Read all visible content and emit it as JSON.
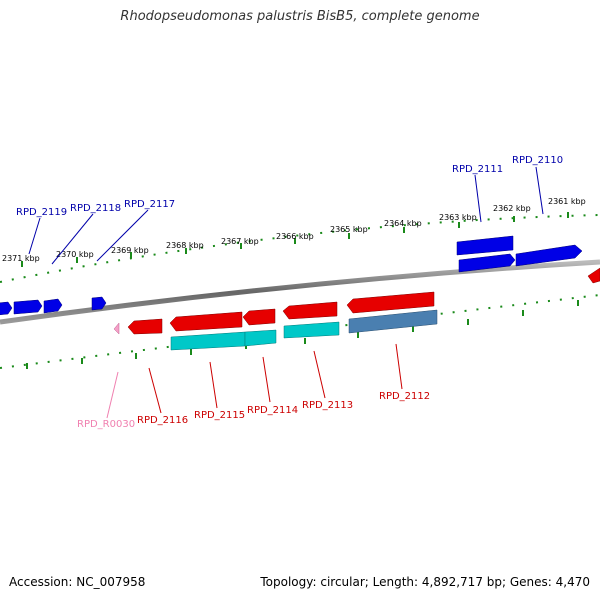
{
  "title": "Rhodopseudomonas palustris BisB5, complete genome",
  "footer": {
    "accession": "Accession: NC_007958",
    "summary": "Topology: circular; Length: 4,892,717 bp; Genes: 4,470"
  },
  "colors": {
    "forward_gene": "#0000e6",
    "reverse_gene": "#e60000",
    "cds_reverse": "#00c8c8",
    "cds_reverse_alt": "#4a7fb0",
    "rna_gene": "#f5a0c8",
    "scale_tick": "#1a8a1a",
    "backbone": "#777777"
  },
  "scale_ticks": [
    "2371 kbp",
    "2370 kbp",
    "2369 kbp",
    "2368 kbp",
    "2367 kbp",
    "2366 kbp",
    "2365 kbp",
    "2364 kbp",
    "2363 kbp",
    "2362 kbp",
    "2361 kbp"
  ],
  "forward_labels": [
    "RPD_2119",
    "RPD_2118",
    "RPD_2117",
    "RPD_2111",
    "RPD_2110"
  ],
  "reverse_labels": [
    "RPD_R0030",
    "RPD_2116",
    "RPD_2115",
    "RPD_2114",
    "RPD_2113",
    "RPD_2112"
  ]
}
